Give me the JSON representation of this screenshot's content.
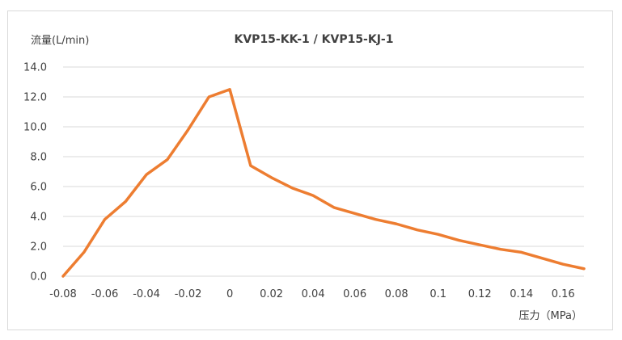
{
  "chart_data": {
    "type": "line",
    "title": "KVP15-KK-1 / KVP15-KJ-1",
    "xlabel": "压力（MPa）",
    "ylabel": "流量(L/min)",
    "xlim": [
      -0.08,
      0.17
    ],
    "ylim": [
      0,
      14
    ],
    "x_ticks": [
      -0.08,
      -0.06,
      -0.04,
      -0.02,
      0,
      0.02,
      0.04,
      0.06,
      0.08,
      0.1,
      0.12,
      0.14,
      0.16
    ],
    "x_tick_labels": [
      "-0.08",
      "-0.06",
      "-0.04",
      "-0.02",
      "0",
      "0.02",
      "0.04",
      "0.06",
      "0.08",
      "0.1",
      "0.12",
      "0.14",
      "0.16"
    ],
    "y_ticks": [
      0,
      2,
      4,
      6,
      8,
      10,
      12,
      14
    ],
    "y_tick_labels": [
      "0.0",
      "2.0",
      "4.0",
      "6.0",
      "8.0",
      "10.0",
      "12.0",
      "14.0"
    ],
    "grid": true,
    "line_color": "#ed7d31",
    "grid_color": "#d9d9d9",
    "series": [
      {
        "x": [
          -0.08,
          -0.07,
          -0.06,
          -0.05,
          -0.04,
          -0.03,
          -0.02,
          -0.01,
          0,
          0.01,
          0.02,
          0.03,
          0.04,
          0.05,
          0.06,
          0.07,
          0.08,
          0.09,
          0.1,
          0.11,
          0.12,
          0.13,
          0.14,
          0.15,
          0.16,
          0.17
        ],
        "values": [
          0.0,
          1.6,
          3.8,
          5.0,
          6.8,
          7.8,
          9.8,
          12.0,
          12.5,
          7.4,
          6.6,
          5.9,
          5.4,
          4.6,
          4.2,
          3.8,
          3.5,
          3.1,
          2.8,
          2.4,
          2.1,
          1.8,
          1.6,
          1.2,
          0.8,
          0.5
        ]
      }
    ]
  }
}
